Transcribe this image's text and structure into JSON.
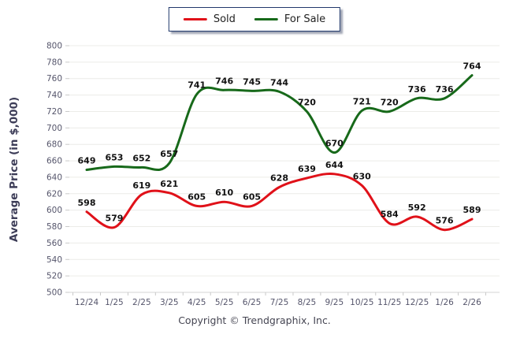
{
  "legend": {
    "border_color": "#21386B"
  },
  "footer": {
    "text": "Copyright © Trendgraphix, Inc."
  },
  "chart_data": {
    "type": "line",
    "title": "",
    "xlabel": "",
    "ylabel": "Average Price (in $,000)",
    "ylim": [
      500,
      800
    ],
    "ytick_step": 20,
    "grid": true,
    "legend_position": "top-center",
    "categories": [
      "12/24",
      "1/25",
      "2/25",
      "3/25",
      "4/25",
      "5/25",
      "6/25",
      "7/25",
      "8/25",
      "9/25",
      "10/25",
      "11/25",
      "12/25",
      "1/26",
      "2/26"
    ],
    "series": [
      {
        "name": "Sold",
        "color": "#E01119",
        "values": [
          598,
          579,
          619,
          621,
          605,
          610,
          605,
          628,
          639,
          644,
          630,
          584,
          592,
          576,
          589
        ]
      },
      {
        "name": "For Sale",
        "color": "#17691A",
        "values": [
          649,
          653,
          652,
          657,
          741,
          746,
          745,
          744,
          720,
          670,
          721,
          720,
          736,
          736,
          764
        ]
      }
    ],
    "colors": {
      "grid": "#ECECE8",
      "tick": "#C9C9C9",
      "axis": "#D5D5D5"
    }
  }
}
